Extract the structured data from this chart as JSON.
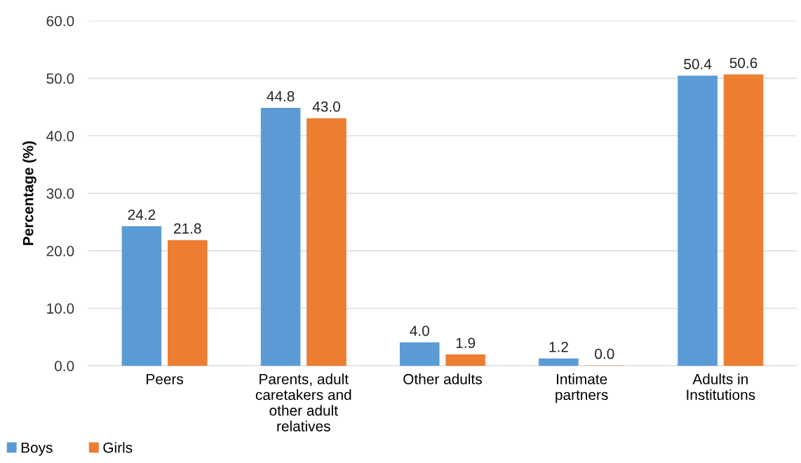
{
  "chart_data": {
    "type": "bar",
    "ylabel": "Percentage (%)",
    "categories": [
      "Peers",
      "Parents, adult caretakers and other adult relatives",
      "Other adults",
      "Intimate partners",
      "Adults in Institutions"
    ],
    "series": [
      {
        "name": "Boys",
        "color": "#5b9bd5",
        "values": [
          24.2,
          44.8,
          4.0,
          1.2,
          50.4
        ],
        "value_labels": [
          "24.2",
          "44.8",
          "4.0",
          "1.2",
          "50.4"
        ]
      },
      {
        "name": "Girls",
        "color": "#ed7d31",
        "values": [
          21.8,
          43.0,
          1.9,
          0.0,
          50.6
        ],
        "value_labels": [
          "21.8",
          "43.0",
          "1.9",
          "0.0",
          "50.6"
        ]
      }
    ],
    "ylim": [
      0,
      60
    ],
    "yticks": [
      {
        "value": 0,
        "label": "0.0"
      },
      {
        "value": 10,
        "label": "10.0"
      },
      {
        "value": 20,
        "label": "20.0"
      },
      {
        "value": 30,
        "label": "30.0"
      },
      {
        "value": 40,
        "label": "40.0"
      },
      {
        "value": 50,
        "label": "50.0"
      },
      {
        "value": 60,
        "label": "60.0"
      }
    ],
    "grid": "y",
    "legend": "bottom left"
  }
}
